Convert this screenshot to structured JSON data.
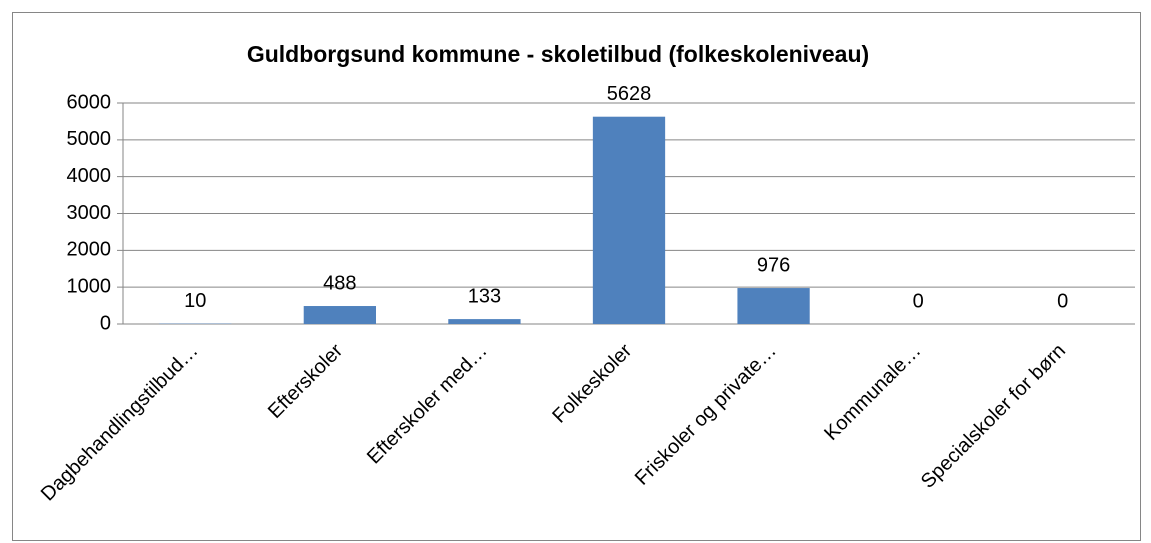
{
  "chart_data": {
    "type": "bar",
    "title": "Guldborgsund kommune - skoletilbud (folkeskoleniveau)",
    "categories": [
      "Dagbehandlingstilbud…",
      "Efterskoler",
      "Efterskoler med…",
      "Folkeskoler",
      "Friskoler og private…",
      "Kommunale…",
      "Specialskoler for børn"
    ],
    "values": [
      10,
      488,
      133,
      5628,
      976,
      0,
      0
    ],
    "color": "#4f81bd",
    "ylim": [
      0,
      6000
    ],
    "yticks": [
      0,
      1000,
      2000,
      3000,
      4000,
      5000,
      6000
    ],
    "grid": true
  }
}
